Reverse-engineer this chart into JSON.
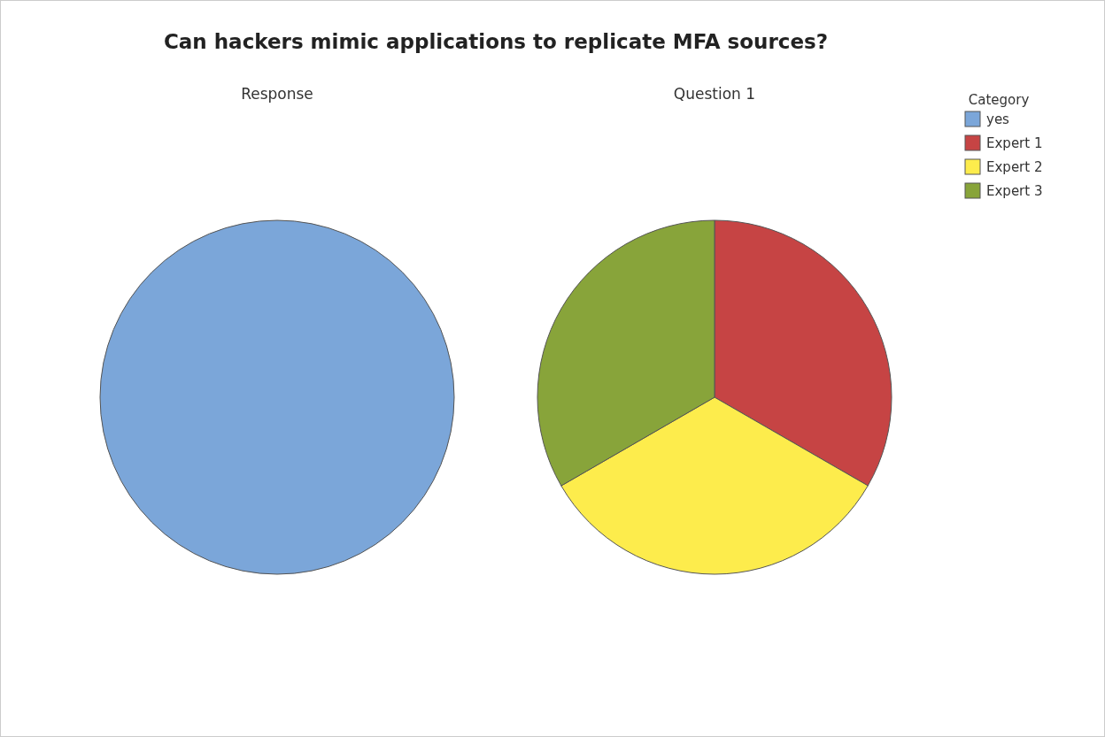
{
  "chart_data": [
    {
      "type": "pie",
      "title": "Can hackers mimic applications to replicate MFA sources?",
      "subtitle": "Response",
      "categories": [
        "yes"
      ],
      "values": [
        100
      ],
      "colors": [
        "#7ba6d9"
      ],
      "legend": "top right",
      "legend_title": "Category"
    },
    {
      "type": "pie",
      "subtitle": "Question 1",
      "categories": [
        "Expert 1",
        "Expert 2",
        "Expert 3"
      ],
      "values": [
        33.33,
        33.33,
        33.34
      ],
      "colors": [
        "#c64444",
        "#fdec4c",
        "#88a43a"
      ],
      "legend": "top right"
    }
  ]
}
